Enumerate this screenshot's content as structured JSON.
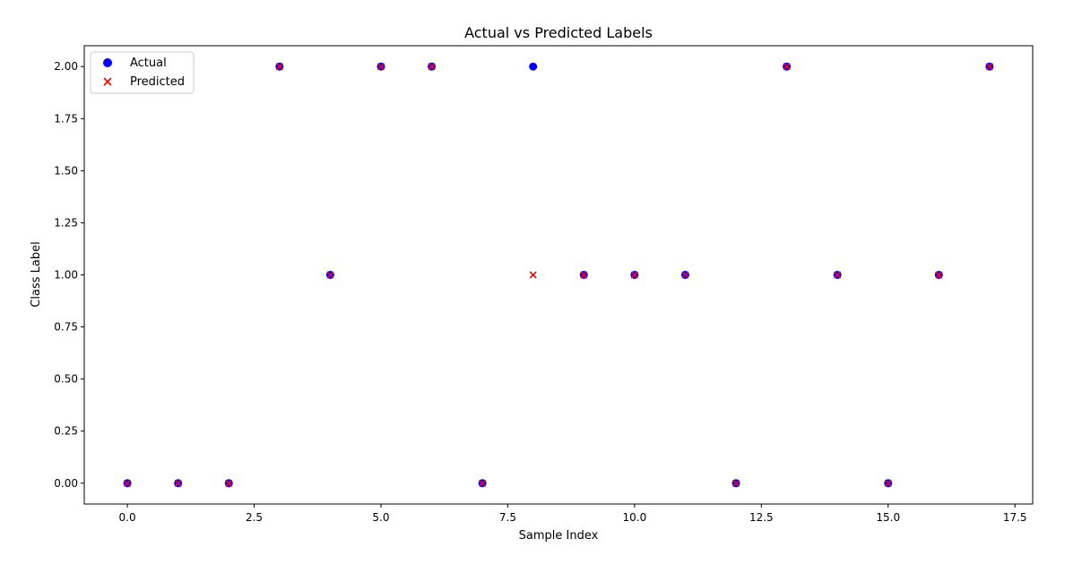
{
  "chart_data": {
    "type": "scatter",
    "title": "Actual vs Predicted Labels",
    "xlabel": "Sample Index",
    "ylabel": "Class Label",
    "xlim": [
      -0.85,
      17.85
    ],
    "ylim": [
      -0.1,
      2.1
    ],
    "xticks": [
      0.0,
      2.5,
      5.0,
      7.5,
      10.0,
      12.5,
      15.0,
      17.5
    ],
    "xtick_labels": [
      "0.0",
      "2.5",
      "5.0",
      "7.5",
      "10.0",
      "12.5",
      "15.0",
      "17.5"
    ],
    "yticks": [
      0.0,
      0.25,
      0.5,
      0.75,
      1.0,
      1.25,
      1.5,
      1.75,
      2.0
    ],
    "ytick_labels": [
      "0.00",
      "0.25",
      "0.50",
      "0.75",
      "1.00",
      "1.25",
      "1.50",
      "1.75",
      "2.00"
    ],
    "grid": false,
    "legend_position": "top-left",
    "series": [
      {
        "name": "Actual",
        "marker": "circle",
        "color": "#0000ff",
        "x": [
          0,
          1,
          2,
          3,
          4,
          5,
          6,
          7,
          8,
          9,
          10,
          11,
          12,
          13,
          14,
          15,
          16,
          17
        ],
        "y": [
          0,
          0,
          0,
          2,
          1,
          2,
          2,
          0,
          2,
          1,
          1,
          1,
          0,
          2,
          1,
          0,
          1,
          2
        ]
      },
      {
        "name": "Predicted",
        "marker": "x",
        "color": "#ff0000",
        "x": [
          0,
          1,
          2,
          3,
          4,
          5,
          6,
          7,
          8,
          9,
          10,
          11,
          12,
          13,
          14,
          15,
          16,
          17
        ],
        "y": [
          0,
          0,
          0,
          2,
          1,
          2,
          2,
          0,
          1,
          1,
          1,
          1,
          0,
          2,
          1,
          0,
          1,
          2
        ]
      }
    ]
  }
}
